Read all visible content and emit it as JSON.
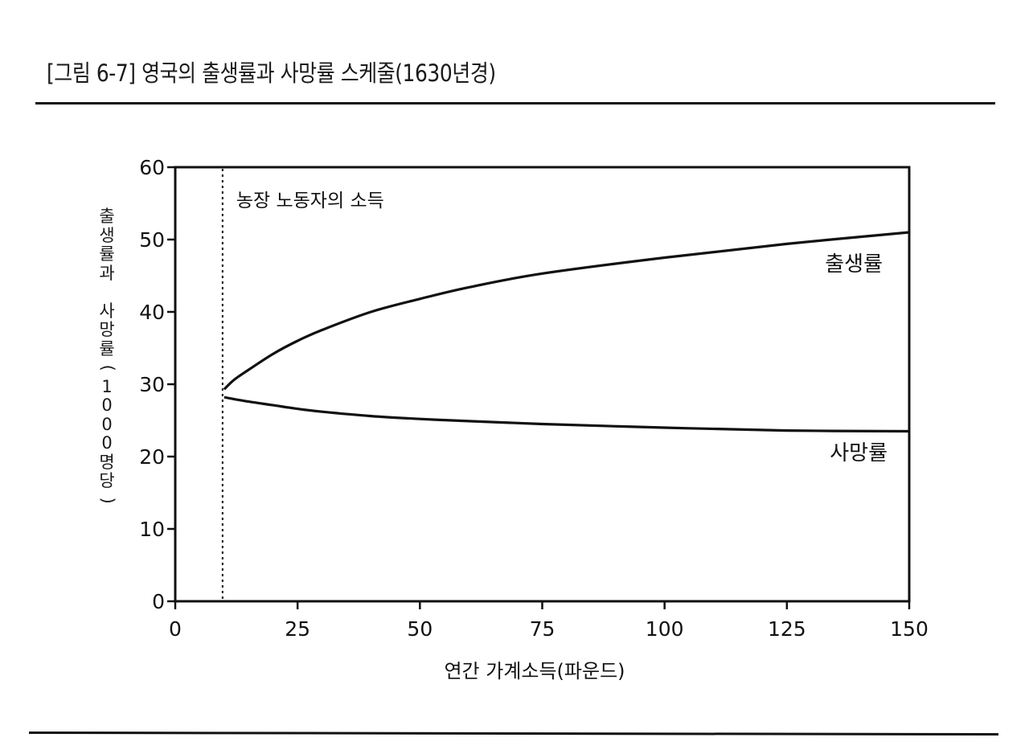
{
  "figure": {
    "title": "[그림 6-7] 영국의 출생률과 사망률 스케줄(1630년경)"
  },
  "chart_data": {
    "type": "line",
    "title": "[그림 6-7] 영국의 출생률과 사망률 스케줄(1630년경)",
    "xlabel": "연간 가계소득(파운드)",
    "ylabel": "출생률과 사망률(1000명당)",
    "xlim": [
      0,
      150
    ],
    "ylim": [
      0,
      60
    ],
    "x_ticks": [
      0,
      25,
      50,
      75,
      100,
      125,
      150
    ],
    "y_ticks": [
      0,
      10,
      20,
      30,
      40,
      50,
      60
    ],
    "grid": false,
    "legend": "inline labels on right side",
    "series": [
      {
        "name": "출생률",
        "x": [
          10,
          12,
          15,
          20,
          25,
          30,
          40,
          50,
          60,
          75,
          100,
          125,
          150
        ],
        "values": [
          29.3,
          30.6,
          32.0,
          34.2,
          36.0,
          37.5,
          40.0,
          41.8,
          43.4,
          45.3,
          47.5,
          49.4,
          51.0
        ]
      },
      {
        "name": "사망률",
        "x": [
          10,
          15,
          20,
          25,
          30,
          40,
          50,
          60,
          75,
          100,
          125,
          150
        ],
        "values": [
          28.2,
          27.6,
          27.1,
          26.6,
          26.2,
          25.6,
          25.2,
          24.9,
          24.5,
          24.0,
          23.6,
          23.5
        ]
      }
    ],
    "annotations": [
      {
        "text": "농장 노동자의 소득",
        "x": 10,
        "style": "dotted vertical line"
      },
      {
        "text": "출생률",
        "x": 140,
        "y": 47
      },
      {
        "text": "사망률",
        "x": 140,
        "y": 20.5
      }
    ]
  },
  "labels": {
    "y_axis_lines": [
      "출",
      "생",
      "률",
      "과",
      "",
      "사",
      "망",
      "률",
      "(",
      "1",
      "0",
      "0",
      "0",
      "명",
      "당",
      ")"
    ],
    "x_axis": "연간 가계소득(파운드)",
    "farm_worker_income": "농장 노동자의 소득",
    "birth_rate": "출생률",
    "death_rate": "사망률"
  }
}
